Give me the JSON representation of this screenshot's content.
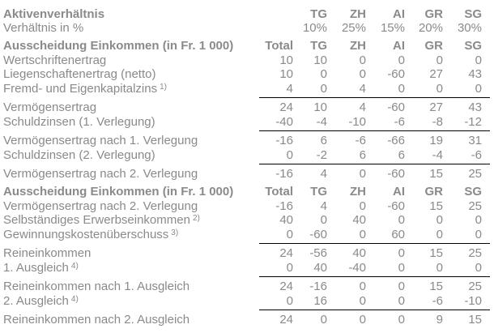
{
  "colors": {
    "text": "#8a8a8a",
    "sum_rule": "#000000",
    "background": "#ffffff"
  },
  "table": {
    "column_keys": [
      "total",
      "tg",
      "zh",
      "ai",
      "gr",
      "sg"
    ],
    "rows": [
      {
        "type": "header",
        "label": "Aktivenverhältnis",
        "cells": [
          "",
          "TG",
          "ZH",
          "AI",
          "GR",
          "SG"
        ]
      },
      {
        "type": "plain",
        "label": "Verhältnis in %",
        "cells": [
          "",
          "10%",
          "25%",
          "15%",
          "20%",
          "30%"
        ]
      },
      {
        "type": "header",
        "label": "Ausscheidung Einkommen (in Fr. 1 000)",
        "cells": [
          "Total",
          "TG",
          "ZH",
          "AI",
          "GR",
          "SG"
        ]
      },
      {
        "type": "plain",
        "label": "Wertschriftenertrag",
        "cells": [
          "10",
          "10",
          "0",
          "0",
          "0",
          "0"
        ]
      },
      {
        "type": "plain",
        "label": "Liegenschaftenertrag (netto)",
        "cells": [
          "10",
          "0",
          "0",
          "-60",
          "27",
          "43"
        ]
      },
      {
        "type": "plain",
        "label": "Fremd- und Eigenkapitalzins",
        "footnote": "1)",
        "cells": [
          "4",
          "0",
          "4",
          "0",
          "0",
          "0"
        ]
      },
      {
        "type": "sum",
        "label": "Vermögensertrag",
        "cells": [
          "24",
          "10",
          "4",
          "-60",
          "27",
          "43"
        ]
      },
      {
        "type": "plain",
        "label": "Schuldzinsen (1. Verlegung)",
        "cells": [
          "-40",
          "-4",
          "-10",
          "-6",
          "-8",
          "-12"
        ]
      },
      {
        "type": "sum",
        "label": "Vermögensertrag nach 1. Verlegung",
        "cells": [
          "-16",
          "6",
          "-6",
          "-66",
          "19",
          "31"
        ]
      },
      {
        "type": "plain",
        "label": "Schuldzinsen (2. Verlegung)",
        "cells": [
          "0",
          "-2",
          "6",
          "6",
          "-4",
          "-6"
        ]
      },
      {
        "type": "sum",
        "label": "Vermögensertrag nach 2. Verlegung",
        "cells": [
          "-16",
          "4",
          "0",
          "-60",
          "15",
          "25"
        ]
      },
      {
        "type": "header",
        "label": "Ausscheidung Einkommen (in Fr. 1 000)",
        "cells": [
          "Total",
          "TG",
          "ZH",
          "AI",
          "GR",
          "SG"
        ]
      },
      {
        "type": "plain",
        "label": "Vermögensertrag nach 2. Verlegung",
        "cells": [
          "-16",
          "4",
          "0",
          "-60",
          "15",
          "25"
        ]
      },
      {
        "type": "plain",
        "label": "Selbständiges Erwerbseinkommen",
        "footnote": "2)",
        "cells": [
          "40",
          "0",
          "40",
          "0",
          "0",
          "0"
        ]
      },
      {
        "type": "plain",
        "label": "Gewinnungskostenüberschuss",
        "footnote": "3)",
        "cells": [
          "0",
          "-60",
          "0",
          "60",
          "0",
          "0"
        ]
      },
      {
        "type": "sum",
        "label": "Reineinkommen",
        "cells": [
          "24",
          "-56",
          "40",
          "0",
          "15",
          "25"
        ]
      },
      {
        "type": "plain",
        "label": "1. Ausgleich",
        "footnote": "4)",
        "cells": [
          "0",
          "40",
          "-40",
          "0",
          "0",
          "0"
        ]
      },
      {
        "type": "sum",
        "label": "Reineinkommen nach 1. Ausgleich",
        "cells": [
          "24",
          "-16",
          "0",
          "0",
          "15",
          "25"
        ]
      },
      {
        "type": "plain",
        "label": "2. Ausgleich",
        "footnote": "4)",
        "cells": [
          "0",
          "16",
          "0",
          "0",
          "-6",
          "-10"
        ]
      },
      {
        "type": "sum",
        "label": "Reineinkommen nach 2. Ausgleich",
        "cells": [
          "24",
          "0",
          "0",
          "0",
          "9",
          "15"
        ]
      }
    ]
  }
}
